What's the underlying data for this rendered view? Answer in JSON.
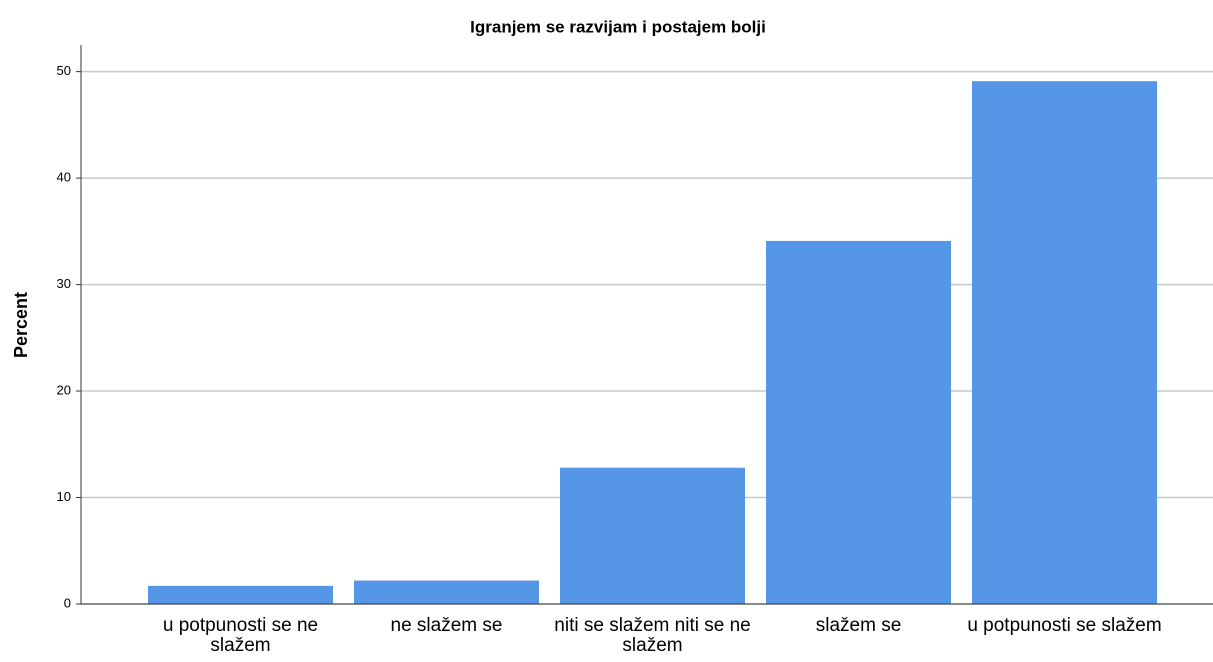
{
  "chart_data": {
    "type": "bar",
    "title": "Igranjem se razvijam i postajem bolji",
    "y_label": "Percent",
    "categories": [
      "u potpunosti se ne slažem",
      "ne slažem se",
      "niti se slažem niti se ne slažem",
      "slažem se",
      "u potpunosti se slažem"
    ],
    "values": [
      1.7,
      2.2,
      12.8,
      34.1,
      49.1
    ],
    "color": "#5596e6",
    "ylim": [
      0,
      52.5
    ],
    "yticks": [
      0,
      10,
      20,
      30,
      40,
      50
    ],
    "grid": true
  }
}
